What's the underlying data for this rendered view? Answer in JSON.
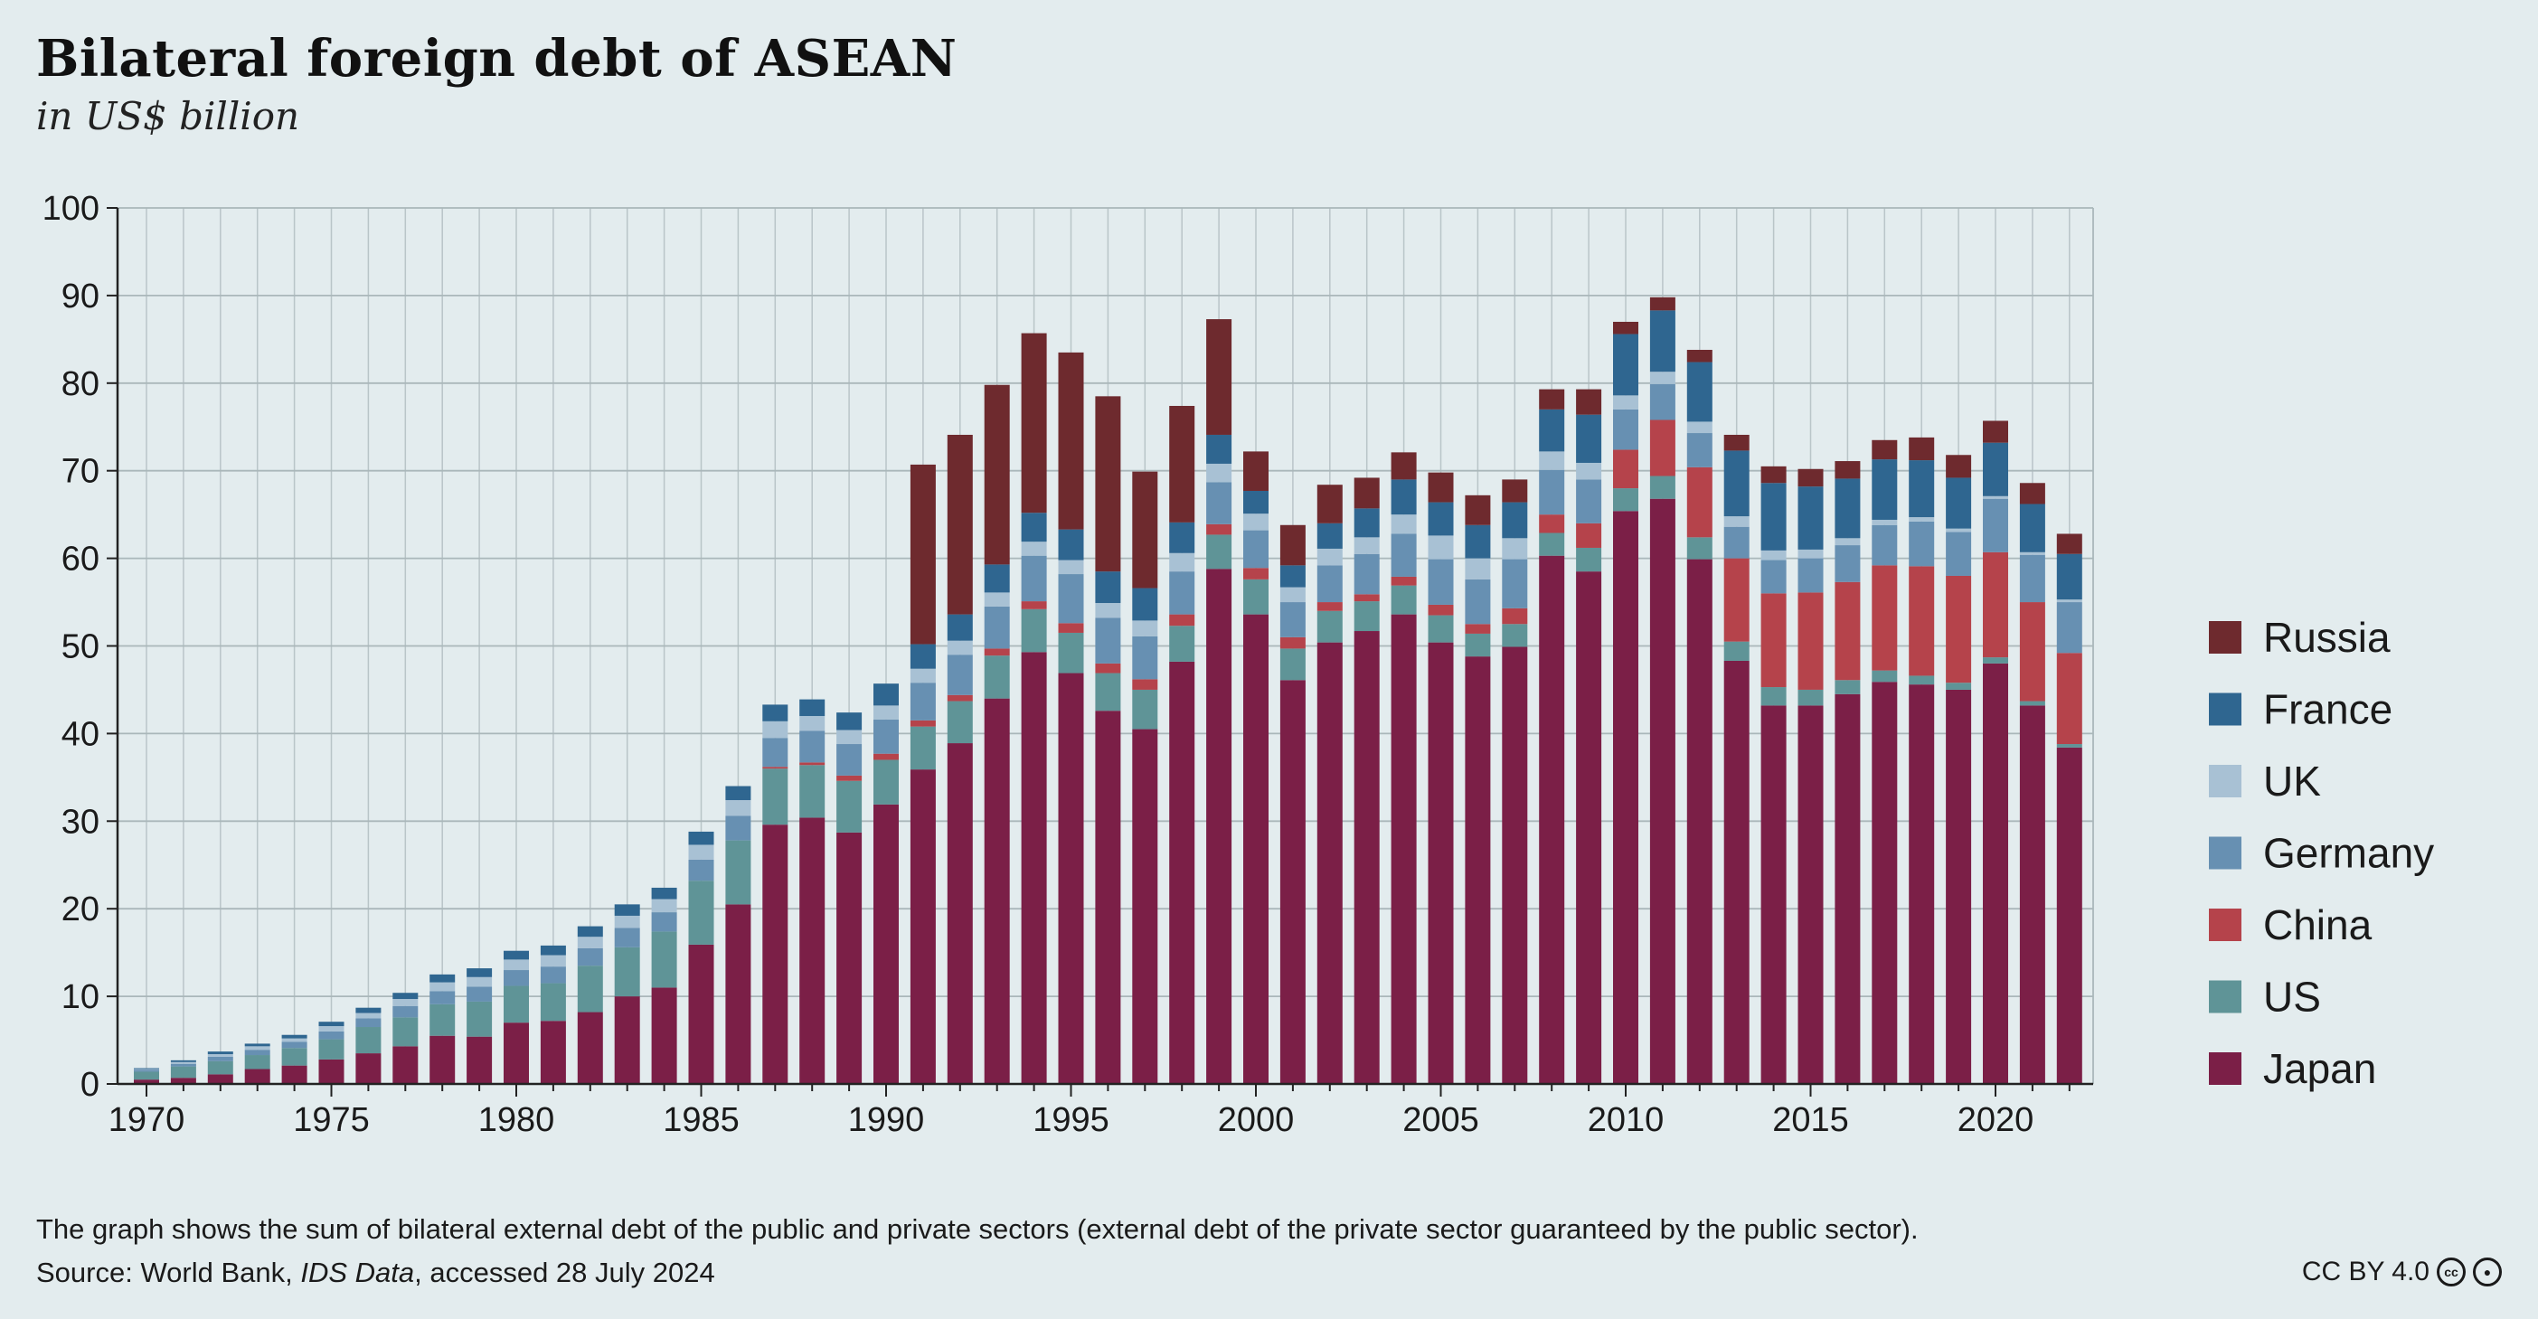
{
  "title": "Bilateral foreign debt of ASEAN",
  "subtitle": "in US$ billion",
  "note": "The graph shows the sum of bilateral external debt of the public and private sectors (external debt of the private sector guaranteed by the public sector).",
  "source": {
    "prefix": "Source: World Bank, ",
    "dataset": "IDS Data",
    "suffix": ", accessed 28 July 2024"
  },
  "license": "CC BY 4.0",
  "chart_data": {
    "type": "bar",
    "stacked": true,
    "grid": true,
    "legend_position": "right",
    "ylim": [
      0,
      100
    ],
    "yticks": [
      0,
      10,
      20,
      30,
      40,
      50,
      60,
      70,
      80,
      90,
      100
    ],
    "xtick_labels": [
      "1970",
      "1975",
      "1980",
      "1985",
      "1990",
      "1995",
      "2000",
      "2005",
      "2010",
      "2015",
      "2020"
    ],
    "categories": [
      1970,
      1971,
      1972,
      1973,
      1974,
      1975,
      1976,
      1977,
      1978,
      1979,
      1980,
      1981,
      1982,
      1983,
      1984,
      1985,
      1986,
      1987,
      1988,
      1989,
      1990,
      1991,
      1992,
      1993,
      1994,
      1995,
      1996,
      1997,
      1998,
      1999,
      2000,
      2001,
      2002,
      2003,
      2004,
      2005,
      2006,
      2007,
      2008,
      2009,
      2010,
      2011,
      2012,
      2013,
      2014,
      2015,
      2016,
      2017,
      2018,
      2019,
      2020,
      2021,
      2022
    ],
    "series": [
      {
        "name": "Japan",
        "color": "#7b1f47",
        "values": [
          0.5,
          0.7,
          1.1,
          1.7,
          2.1,
          2.8,
          3.5,
          4.3,
          5.5,
          5.4,
          7.0,
          7.2,
          8.2,
          10.0,
          11.0,
          15.9,
          20.5,
          29.6,
          30.4,
          28.7,
          31.9,
          35.9,
          38.9,
          44.0,
          49.3,
          46.9,
          42.6,
          40.5,
          48.2,
          58.8,
          53.6,
          46.1,
          50.4,
          51.7,
          53.6,
          50.4,
          48.8,
          49.9,
          60.3,
          58.5,
          65.4,
          66.8,
          59.9,
          48.3,
          43.2,
          43.2,
          44.5,
          45.9,
          45.6,
          45.0,
          48.0,
          43.2,
          38.4
        ]
      },
      {
        "name": "US",
        "color": "#5f9497",
        "values": [
          0.9,
          1.3,
          1.5,
          1.6,
          2.0,
          2.3,
          3.0,
          3.3,
          3.6,
          4.0,
          4.2,
          4.3,
          5.3,
          5.6,
          6.4,
          7.3,
          7.3,
          6.4,
          6.0,
          5.9,
          5.1,
          4.9,
          4.8,
          4.9,
          4.9,
          4.6,
          4.3,
          4.5,
          4.1,
          3.9,
          4.0,
          3.6,
          3.6,
          3.4,
          3.3,
          3.1,
          2.6,
          2.6,
          2.6,
          2.7,
          2.6,
          2.6,
          2.5,
          2.2,
          2.1,
          1.8,
          1.6,
          1.3,
          1.0,
          0.8,
          0.7,
          0.5,
          0.4
        ]
      },
      {
        "name": "China",
        "color": "#b5434b",
        "values": [
          0,
          0,
          0,
          0,
          0,
          0,
          0,
          0,
          0,
          0,
          0,
          0,
          0,
          0,
          0,
          0,
          0,
          0.2,
          0.3,
          0.6,
          0.7,
          0.7,
          0.7,
          0.8,
          0.9,
          1.1,
          1.1,
          1.2,
          1.3,
          1.2,
          1.3,
          1.3,
          1.0,
          0.8,
          1.0,
          1.2,
          1.1,
          1.8,
          2.1,
          2.8,
          4.4,
          6.4,
          8.0,
          9.5,
          10.7,
          11.1,
          11.2,
          12.0,
          12.5,
          12.2,
          12.0,
          11.3,
          10.4
        ]
      },
      {
        "name": "Germany",
        "color": "#6790b2",
        "values": [
          0.2,
          0.3,
          0.5,
          0.6,
          0.7,
          0.9,
          1.0,
          1.3,
          1.5,
          1.7,
          1.8,
          1.9,
          2.0,
          2.2,
          2.2,
          2.4,
          2.8,
          3.3,
          3.6,
          3.6,
          3.9,
          4.3,
          4.6,
          4.8,
          5.2,
          5.6,
          5.2,
          4.9,
          4.9,
          4.8,
          4.3,
          4.0,
          4.2,
          4.6,
          4.9,
          5.2,
          5.1,
          5.6,
          5.1,
          5.0,
          4.6,
          4.1,
          3.9,
          3.6,
          3.8,
          3.9,
          4.2,
          4.6,
          5.1,
          5.0,
          6.1,
          5.4,
          5.8
        ]
      },
      {
        "name": "UK",
        "color": "#a8c1d4",
        "values": [
          0.1,
          0.2,
          0.3,
          0.4,
          0.4,
          0.6,
          0.6,
          0.8,
          1.0,
          1.1,
          1.2,
          1.3,
          1.3,
          1.4,
          1.5,
          1.7,
          1.8,
          1.9,
          1.7,
          1.6,
          1.6,
          1.6,
          1.6,
          1.6,
          1.6,
          1.6,
          1.7,
          1.8,
          2.1,
          2.1,
          1.9,
          1.7,
          1.9,
          1.9,
          2.2,
          2.7,
          2.4,
          2.4,
          2.1,
          1.9,
          1.6,
          1.4,
          1.3,
          1.2,
          1.1,
          1.0,
          0.8,
          0.6,
          0.5,
          0.4,
          0.3,
          0.3,
          0.3
        ]
      },
      {
        "name": "France",
        "color": "#2f6690",
        "values": [
          0.1,
          0.2,
          0.3,
          0.3,
          0.4,
          0.5,
          0.6,
          0.7,
          0.9,
          1.0,
          1.0,
          1.1,
          1.2,
          1.3,
          1.3,
          1.5,
          1.6,
          1.9,
          1.9,
          2.0,
          2.5,
          2.8,
          3.0,
          3.2,
          3.3,
          3.5,
          3.6,
          3.7,
          3.5,
          3.3,
          2.6,
          2.5,
          2.9,
          3.3,
          4.0,
          3.8,
          3.8,
          4.1,
          4.8,
          5.5,
          7.0,
          7.0,
          6.8,
          7.5,
          7.7,
          7.2,
          6.8,
          6.9,
          6.5,
          5.8,
          6.1,
          5.5,
          5.2
        ]
      },
      {
        "name": "Russia",
        "color": "#6e2a2e",
        "values": [
          0,
          0,
          0,
          0,
          0,
          0,
          0,
          0,
          0,
          0,
          0,
          0,
          0,
          0,
          0,
          0,
          0,
          0,
          0,
          0,
          0,
          20.5,
          20.5,
          20.5,
          20.5,
          20.2,
          20.0,
          13.3,
          13.3,
          13.2,
          4.5,
          4.6,
          4.4,
          3.5,
          3.1,
          3.4,
          3.4,
          2.6,
          2.3,
          2.9,
          1.4,
          1.5,
          1.4,
          1.8,
          1.9,
          2.0,
          2.0,
          2.2,
          2.6,
          2.6,
          2.5,
          2.4,
          2.3
        ]
      }
    ]
  }
}
